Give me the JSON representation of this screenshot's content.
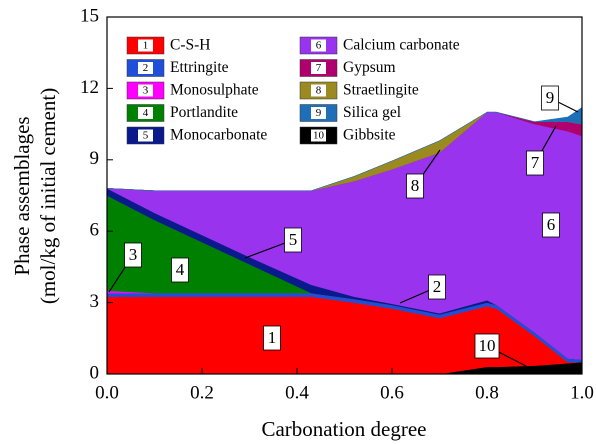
{
  "chart_data": {
    "type": "stacked_area",
    "xlabel": "Carbonation degree",
    "ylabel": [
      "Phase assemblages",
      "(mol/kg of initial cement)"
    ],
    "x": [
      0,
      0.1,
      0.2,
      0.3,
      0.43,
      0.52,
      0.6,
      0.7,
      0.8,
      0.82,
      0.9,
      0.97,
      1.0
    ],
    "xlim": [
      0,
      1
    ],
    "xticks": [
      {
        "value": 0,
        "label": "0.0"
      },
      0.2,
      0.4,
      0.6,
      0.8,
      {
        "value": 1,
        "label": "1.0"
      }
    ],
    "ylim": [
      0,
      15
    ],
    "yticks": [
      0,
      3,
      6,
      9,
      12,
      15
    ],
    "stack_order": [
      9,
      0,
      1,
      2,
      3,
      4,
      5,
      6,
      7,
      8
    ],
    "series": [
      {
        "label": "1",
        "name": "C-S-H",
        "color": "#ff0000",
        "values": [
          3.25,
          3.25,
          3.25,
          3.25,
          3.25,
          3.0,
          2.75,
          2.35,
          2.55,
          2.45,
          1.25,
          0.05,
          0
        ]
      },
      {
        "label": "2",
        "name": "Ettringite",
        "color": "#1f4fd8",
        "values": [
          0.15,
          0.15,
          0.15,
          0.15,
          0.15,
          0.15,
          0.15,
          0.15,
          0.15,
          0.15,
          0.15,
          0.15,
          0.1
        ]
      },
      {
        "label": "3",
        "name": "Monosulphate",
        "color": "#ff00ff",
        "values": [
          0.1,
          0,
          0,
          0,
          0,
          0,
          0,
          0,
          0,
          0,
          0,
          0,
          0
        ]
      },
      {
        "label": "4",
        "name": "Portlandite",
        "color": "#008000",
        "values": [
          4.0,
          3.07,
          2.14,
          1.21,
          0,
          0,
          0,
          0,
          0,
          0,
          0,
          0,
          0
        ]
      },
      {
        "label": "5",
        "name": "Monocarbonate",
        "color": "#0a1a8c",
        "values": [
          0.3,
          0.3,
          0.3,
          0.3,
          0.35,
          0.1,
          0.05,
          0.05,
          0.1,
          0,
          0,
          0,
          0
        ]
      },
      {
        "label": "6",
        "name": "Calcium carbonate",
        "color": "#9933ee",
        "values": [
          0,
          0.93,
          1.86,
          2.79,
          3.95,
          4.85,
          5.65,
          6.75,
          7.9,
          8.1,
          8.75,
          9.55,
          9.4
        ]
      },
      {
        "label": "7",
        "name": "Gypsum",
        "color": "#b0006e",
        "values": [
          0,
          0,
          0,
          0,
          0,
          0,
          0,
          0,
          0,
          0,
          0.1,
          0.4,
          0.5
        ]
      },
      {
        "label": "8",
        "name": "Straetlingite",
        "color": "#9a8a20",
        "values": [
          0,
          0,
          0,
          0,
          0,
          0.2,
          0.35,
          0.5,
          0,
          0,
          0,
          0,
          0
        ]
      },
      {
        "label": "9",
        "name": "Silica gel",
        "color": "#1f6fb8",
        "values": [
          0,
          0,
          0,
          0,
          0,
          0,
          0,
          0,
          0,
          0,
          0,
          0.2,
          0.7
        ]
      },
      {
        "label": "10",
        "name": "Gibbsite",
        "color": "#000000",
        "values": [
          0,
          0,
          0,
          0,
          0,
          0,
          0,
          0,
          0.3,
          0.3,
          0.35,
          0.45,
          0.5
        ]
      }
    ]
  }
}
